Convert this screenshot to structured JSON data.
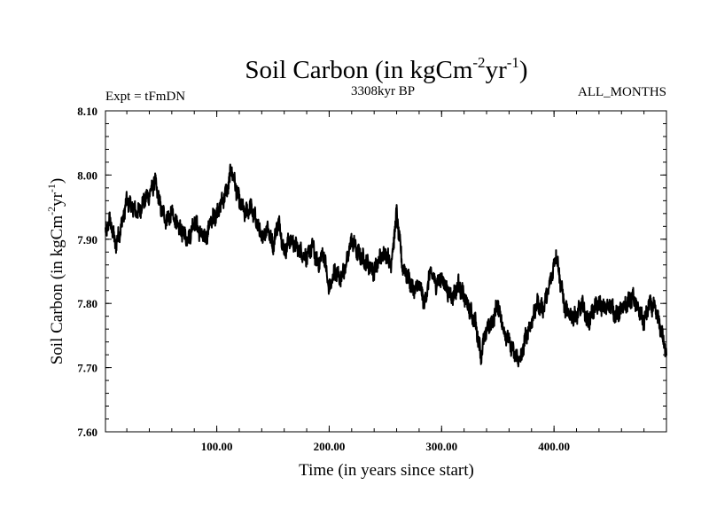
{
  "chart_data": {
    "type": "line",
    "title": {
      "main": "Soil Carbon (in kgCm",
      "sup1": "-2",
      "mid": "yr",
      "sup2": "-1",
      "end": ")"
    },
    "subtitle_left": "Expt = tFmDN",
    "subtitle_center": "3308kyr BP",
    "subtitle_right": "ALL_MONTHS",
    "xlabel": "Time (in years since start)",
    "ylabel": {
      "main": "Soil Carbon (in kgCm",
      "sup1": "-2",
      "mid": "yr",
      "sup2": "-1",
      "end": ")"
    },
    "xlim": [
      1,
      500
    ],
    "ylim": [
      7.6,
      8.1
    ],
    "xticks": [
      {
        "value": 100,
        "label": "100.00"
      },
      {
        "value": 200,
        "label": "200.00"
      },
      {
        "value": 300,
        "label": "300.00"
      },
      {
        "value": 400,
        "label": "400.00"
      }
    ],
    "yticks": [
      {
        "value": 7.6,
        "label": "7.60"
      },
      {
        "value": 7.7,
        "label": "7.70"
      },
      {
        "value": 7.8,
        "label": "7.80"
      },
      {
        "value": 7.9,
        "label": "7.90"
      },
      {
        "value": 8.0,
        "label": "8.00"
      },
      {
        "value": 8.1,
        "label": "8.10"
      }
    ],
    "series": [
      {
        "name": "Soil Carbon",
        "color": "#000000",
        "noise_amplitude": 0.012,
        "x": [
          1,
          5,
          10,
          15,
          20,
          25,
          30,
          35,
          40,
          45,
          50,
          55,
          60,
          65,
          70,
          75,
          80,
          85,
          90,
          95,
          100,
          105,
          110,
          113,
          117,
          120,
          125,
          130,
          135,
          140,
          145,
          150,
          155,
          160,
          165,
          170,
          175,
          180,
          185,
          190,
          195,
          200,
          205,
          210,
          215,
          220,
          225,
          230,
          235,
          240,
          245,
          250,
          255,
          260,
          265,
          270,
          275,
          280,
          285,
          290,
          295,
          300,
          305,
          310,
          315,
          320,
          325,
          330,
          335,
          340,
          345,
          350,
          355,
          360,
          365,
          370,
          375,
          380,
          385,
          390,
          395,
          400,
          402,
          405,
          410,
          415,
          420,
          425,
          430,
          435,
          440,
          445,
          450,
          455,
          460,
          465,
          470,
          475,
          480,
          485,
          490,
          495,
          500
        ],
        "y": [
          7.91,
          7.93,
          7.89,
          7.92,
          7.96,
          7.95,
          7.94,
          7.96,
          7.97,
          7.99,
          7.95,
          7.93,
          7.94,
          7.92,
          7.91,
          7.9,
          7.93,
          7.91,
          7.9,
          7.93,
          7.94,
          7.96,
          7.98,
          8.01,
          7.98,
          7.96,
          7.94,
          7.95,
          7.93,
          7.9,
          7.92,
          7.89,
          7.93,
          7.88,
          7.9,
          7.89,
          7.88,
          7.87,
          7.89,
          7.86,
          7.88,
          7.82,
          7.85,
          7.84,
          7.86,
          7.9,
          7.88,
          7.87,
          7.86,
          7.85,
          7.87,
          7.88,
          7.86,
          7.94,
          7.86,
          7.84,
          7.82,
          7.83,
          7.8,
          7.85,
          7.83,
          7.84,
          7.82,
          7.81,
          7.83,
          7.81,
          7.79,
          7.77,
          7.72,
          7.76,
          7.77,
          7.8,
          7.76,
          7.74,
          7.72,
          7.71,
          7.75,
          7.77,
          7.8,
          7.79,
          7.82,
          7.86,
          7.88,
          7.84,
          7.79,
          7.78,
          7.78,
          7.8,
          7.77,
          7.79,
          7.8,
          7.79,
          7.8,
          7.78,
          7.79,
          7.8,
          7.81,
          7.79,
          7.77,
          7.8,
          7.79,
          7.76,
          7.72
        ]
      }
    ]
  }
}
